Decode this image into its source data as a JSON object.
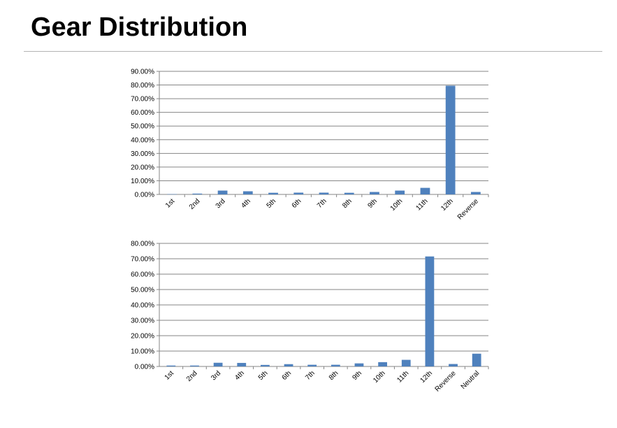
{
  "page": {
    "title": "Gear Distribution"
  },
  "colors": {
    "bar": "#4f81bd",
    "grid": "#868686",
    "axis": "#868686"
  },
  "chart_data": [
    {
      "type": "bar",
      "title": "",
      "xlabel": "",
      "ylabel": "",
      "ylim": [
        0,
        90
      ],
      "y_tick_step": 10,
      "y_tick_format": "percent_2dp",
      "grid": true,
      "legend": "none",
      "categories": [
        "1st",
        "2nd",
        "3rd",
        "4th",
        "5th",
        "6th",
        "7th",
        "8th",
        "9th",
        "10th",
        "11th",
        "12th",
        "Reverse"
      ],
      "values": [
        0.2,
        0.6,
        2.8,
        2.3,
        1.2,
        1.3,
        1.3,
        1.2,
        1.8,
        2.8,
        4.8,
        79.5,
        1.8
      ]
    },
    {
      "type": "bar",
      "title": "",
      "xlabel": "",
      "ylabel": "",
      "ylim": [
        0,
        80
      ],
      "y_tick_step": 10,
      "y_tick_format": "percent_2dp",
      "grid": true,
      "legend": "none",
      "categories": [
        "1st",
        "2nd",
        "3rd",
        "4th",
        "5th",
        "6th",
        "7th",
        "8th",
        "9th",
        "10th",
        "11th",
        "12th",
        "Reverse",
        "Neutral"
      ],
      "values": [
        0.6,
        0.6,
        2.4,
        2.3,
        1.0,
        1.5,
        1.1,
        1.1,
        2.0,
        2.8,
        4.3,
        71.5,
        1.6,
        8.3
      ]
    }
  ]
}
